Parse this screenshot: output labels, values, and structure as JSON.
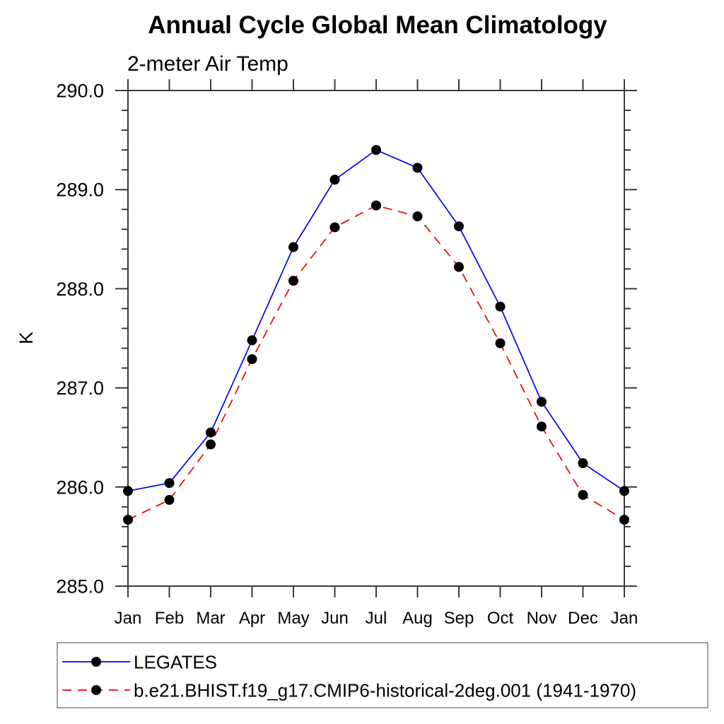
{
  "chart_data": {
    "type": "line",
    "title": "Annual Cycle Global Mean Climatology",
    "subtitle": "2-meter Air Temp",
    "ylabel": "K",
    "xlabel": "",
    "categories": [
      "Jan",
      "Feb",
      "Mar",
      "Apr",
      "May",
      "Jun",
      "Jul",
      "Aug",
      "Sep",
      "Oct",
      "Nov",
      "Dec",
      "Jan"
    ],
    "ylim": [
      285.0,
      290.0
    ],
    "ytick_step_major": 1.0,
    "ytick_step_minor": 0.2,
    "ytick_labels": [
      "285.0",
      "286.0",
      "287.0",
      "288.0",
      "289.0",
      "290.0"
    ],
    "grid": false,
    "legend_position": "bottom-left",
    "series": [
      {
        "name": "LEGATES",
        "color": "#0000ee",
        "line_style": "solid",
        "marker": "circle",
        "marker_color": "#000000",
        "values": [
          285.96,
          286.04,
          286.55,
          287.48,
          288.42,
          289.1,
          289.4,
          289.22,
          288.63,
          287.82,
          286.86,
          286.24,
          285.96
        ]
      },
      {
        "name": "b.e21.BHIST.f19_g17.CMIP6-historical-2deg.001 (1941-1970)",
        "color": "#ee0000",
        "line_style": "dashed",
        "marker": "circle",
        "marker_color": "#000000",
        "values": [
          285.67,
          285.87,
          286.43,
          287.29,
          288.08,
          288.62,
          288.84,
          288.73,
          288.22,
          287.45,
          286.61,
          285.92,
          285.67
        ]
      }
    ]
  },
  "colors": {
    "axis": "#3a3a3a",
    "legend_border": "#808080",
    "background": "#ffffff"
  }
}
